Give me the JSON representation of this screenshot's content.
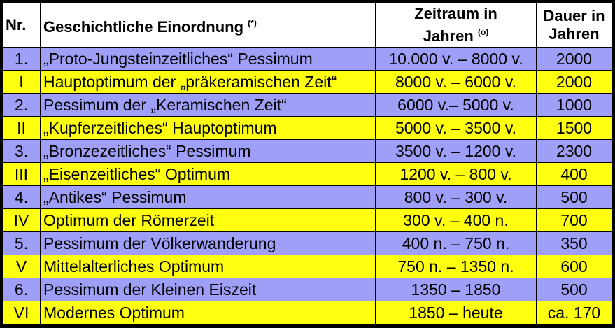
{
  "header": {
    "nr": "Nr.",
    "name": "Geschichtliche Einordnung",
    "name_note": "(*)",
    "range_line1": "Zeitraum in",
    "range_line2": "Jahren",
    "range_note": "(o)",
    "dur_line1": "Dauer in",
    "dur_line2": "Jahren"
  },
  "colors": {
    "pessimum_row": "#9f9ff7",
    "optimum_row": "#ffff10"
  },
  "rows": [
    {
      "nr": "1.",
      "name": "„Proto-Jungsteinzeitliches“ Pessimum",
      "range": "10.000 v. – 8000 v.",
      "dur": "2000",
      "kind": "blue"
    },
    {
      "nr": "I",
      "name": "Hauptoptimum der „präkeramischen Zeit“",
      "range": "8000 v. – 6000 v.",
      "dur": "2000",
      "kind": "yellow"
    },
    {
      "nr": "2.",
      "name": "Pessimum der „Keramischen Zeit“",
      "range": "6000 v.– 5000 v.",
      "dur": "1000",
      "kind": "blue"
    },
    {
      "nr": "II",
      "name": "„Kupferzeitliches“ Hauptoptimum",
      "range": "5000 v. – 3500 v.",
      "dur": "1500",
      "kind": "yellow"
    },
    {
      "nr": "3.",
      "name": "„Bronzezeitliches“ Pessimum",
      "range": "3500 v. – 1200 v.",
      "dur": "2300",
      "kind": "blue"
    },
    {
      "nr": "III",
      "name": "„Eisenzeitliches“ Optimum",
      "range": "1200 v. – 800 v.",
      "dur": "400",
      "kind": "yellow"
    },
    {
      "nr": "4.",
      "name": "„Antikes“ Pessimum",
      "range": "800 v. – 300 v.",
      "dur": "500",
      "kind": "blue"
    },
    {
      "nr": "IV",
      "name": "Optimum der Römerzeit",
      "range": "300 v. – 400 n.",
      "dur": "700",
      "kind": "yellow"
    },
    {
      "nr": "5.",
      "name": "Pessimum der Völkerwanderung",
      "range": "400 n. – 750 n.",
      "dur": "350",
      "kind": "blue"
    },
    {
      "nr": "V",
      "name": "Mittelalterliches Optimum",
      "range": "750 n. – 1350 n.",
      "dur": "600",
      "kind": "yellow"
    },
    {
      "nr": "6.",
      "name": "Pessimum der Kleinen Eiszeit",
      "range": "1350 – 1850",
      "dur": "500",
      "kind": "blue"
    },
    {
      "nr": "VI",
      "name": "Modernes Optimum",
      "range": "1850 – heute",
      "dur": "ca. 170",
      "kind": "yellow"
    }
  ]
}
